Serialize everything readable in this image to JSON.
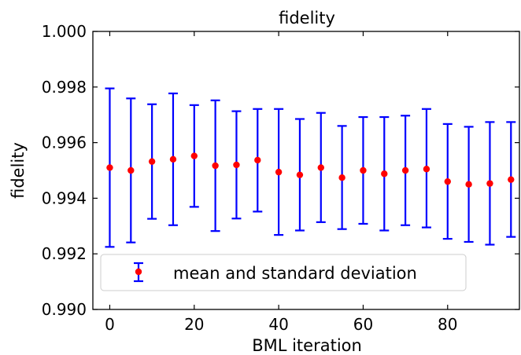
{
  "chart_data": {
    "type": "scatter",
    "title": "fidelity",
    "xlabel": "BML iteration",
    "ylabel": "fidelity",
    "xlim": [
      -4,
      97
    ],
    "ylim": [
      0.99,
      1.0
    ],
    "x_ticks": [
      0,
      20,
      40,
      60,
      80
    ],
    "x_tick_labels": [
      "0",
      "20",
      "40",
      "60",
      "80"
    ],
    "y_ticks": [
      0.99,
      0.992,
      0.994,
      0.996,
      0.998,
      1.0
    ],
    "y_tick_labels": [
      "0.990",
      "0.992",
      "0.994",
      "0.996",
      "0.998",
      "1.000"
    ],
    "grid": false,
    "legend_position": "lower-left",
    "series": [
      {
        "name": "mean and standard deviation",
        "marker_color": "#ff0000",
        "errorbar_color": "#0000ff",
        "x": [
          0,
          5,
          10,
          15,
          20,
          25,
          30,
          35,
          40,
          45,
          50,
          55,
          60,
          65,
          70,
          75,
          80,
          85,
          90,
          95
        ],
        "y": [
          0.9951,
          0.995,
          0.99532,
          0.9954,
          0.99552,
          0.99517,
          0.9952,
          0.99537,
          0.99494,
          0.99484,
          0.9951,
          0.99474,
          0.995,
          0.99488,
          0.995,
          0.99505,
          0.9946,
          0.9945,
          0.99453,
          0.99467
        ],
        "err_low": [
          0.99225,
          0.99241,
          0.99326,
          0.99303,
          0.99369,
          0.99282,
          0.99327,
          0.99352,
          0.99268,
          0.99284,
          0.99314,
          0.99289,
          0.99308,
          0.99284,
          0.99303,
          0.99295,
          0.99254,
          0.99243,
          0.99233,
          0.99261
        ],
        "err_high": [
          0.99795,
          0.99759,
          0.99738,
          0.99777,
          0.99735,
          0.99752,
          0.99713,
          0.99721,
          0.99721,
          0.99685,
          0.99707,
          0.9966,
          0.99692,
          0.99692,
          0.99697,
          0.99721,
          0.99667,
          0.99657,
          0.99674,
          0.99674
        ]
      }
    ]
  }
}
